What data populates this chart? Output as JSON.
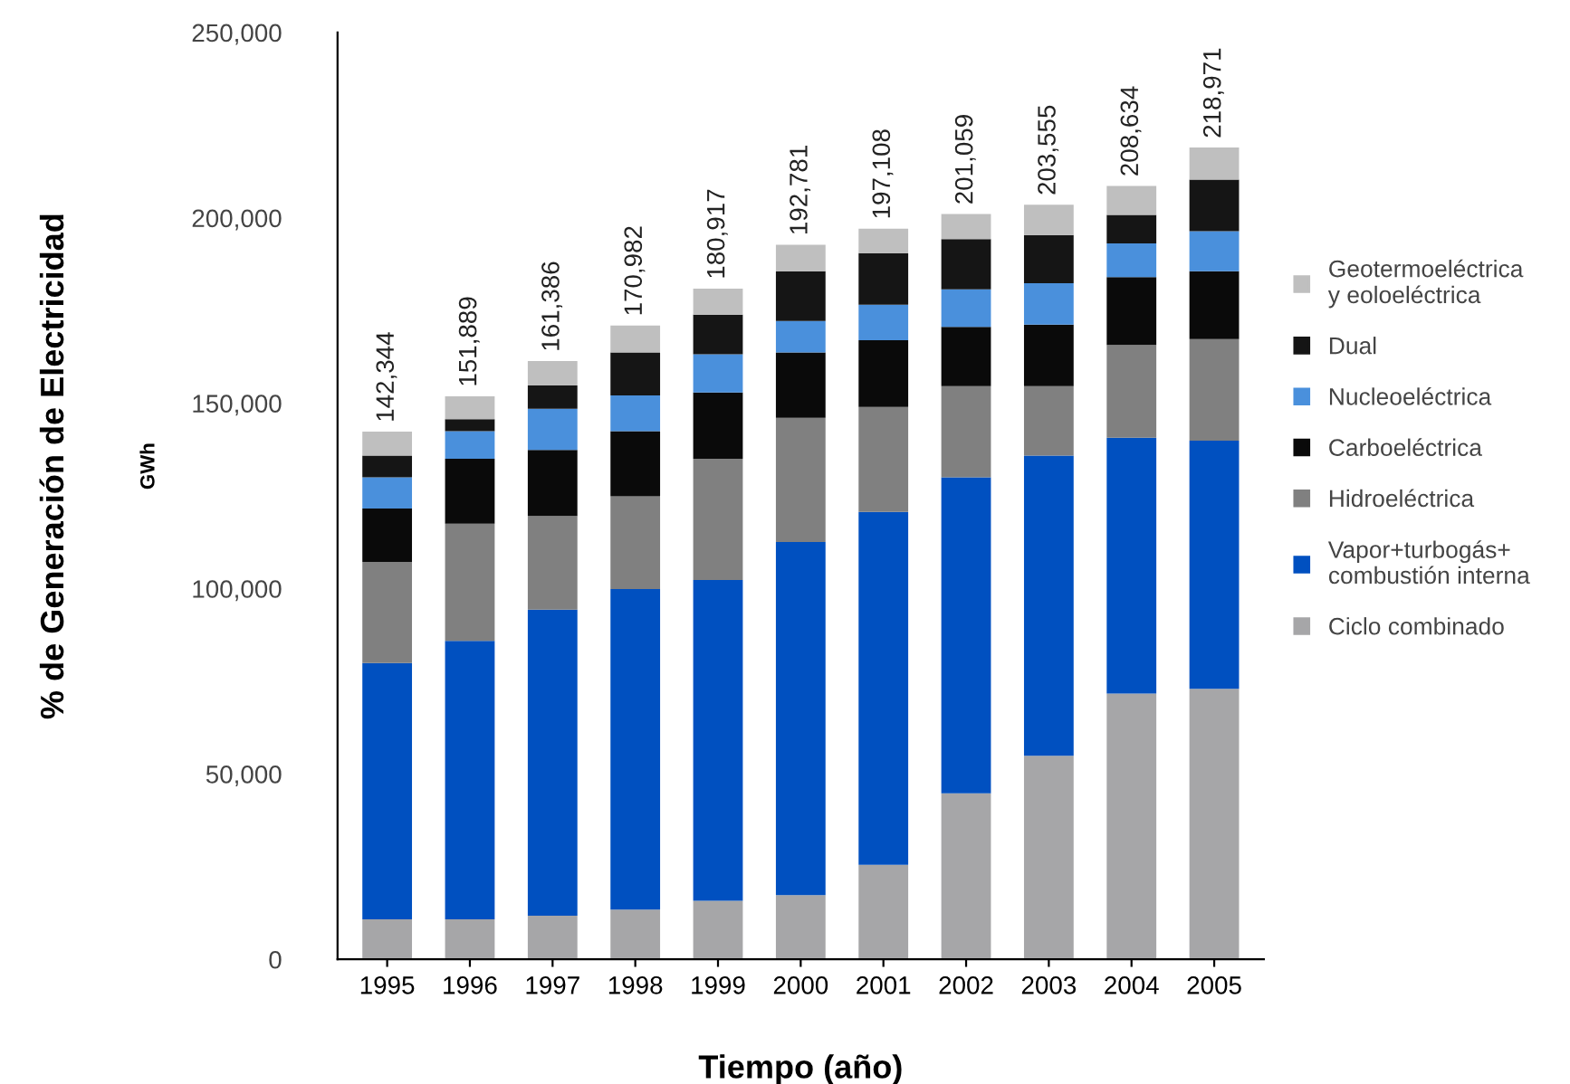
{
  "chart_data": {
    "type": "bar",
    "stacked": true,
    "xlabel": "Tiempo (año)",
    "ylabel": "% de Generación de Electricidad",
    "annotations": [
      "GWh"
    ],
    "categories": [
      "1995",
      "1996",
      "1997",
      "1998",
      "1999",
      "2000",
      "2001",
      "2002",
      "2003",
      "2004",
      "2005"
    ],
    "series": [
      {
        "name": "Ciclo combinado",
        "color": "#a6a6a8",
        "values": [
          10800,
          10800,
          11800,
          13400,
          15800,
          17300,
          25500,
          44800,
          54900,
          71700,
          73000
        ]
      },
      {
        "name": "Vapor+turbogás+\ncombustión interna",
        "color": "#0050c0",
        "values": [
          69100,
          75100,
          82500,
          86500,
          86500,
          95300,
          95200,
          85200,
          81000,
          69000,
          66900
        ]
      },
      {
        "name": "Hidroeléctrica",
        "color": "#808080",
        "values": [
          27300,
          31600,
          25300,
          25000,
          32700,
          33500,
          28300,
          24600,
          18700,
          25000,
          27400
        ]
      },
      {
        "name": "Carboeléctrica",
        "color": "#0a0a0a",
        "values": [
          14400,
          17500,
          17800,
          17600,
          17900,
          17600,
          18000,
          16000,
          16600,
          18300,
          18300
        ]
      },
      {
        "name": "Nucleoeléctrica",
        "color": "#4a90dc",
        "values": [
          8400,
          7500,
          11100,
          9600,
          10300,
          8500,
          9600,
          10100,
          11200,
          9100,
          10800
        ]
      },
      {
        "name": "Dual",
        "color": "#151515",
        "values": [
          5900,
          3200,
          6300,
          11600,
          10700,
          13400,
          13900,
          13600,
          13000,
          7700,
          13900
        ]
      },
      {
        "name": "Geotermoeléctrica\ny eoloeléctrica",
        "color": "#bfbfbf",
        "values": [
          6444,
          6189,
          6586,
          7282,
          7017,
          7181,
          6608,
          6759,
          8155,
          7834,
          8671
        ]
      }
    ],
    "totals": [
      "142,344",
      "151,889",
      "161,386",
      "170,982",
      "180,917",
      "192,781",
      "197,108",
      "201,059",
      "203,555",
      "208,634",
      "218,971"
    ],
    "ylim": [
      0,
      250000
    ],
    "yticks": [
      0,
      {
        "value": 50000,
        "label": "50,000"
      },
      {
        "value": 100000,
        "label": "100,000"
      },
      {
        "value": 150000,
        "label": "150,000"
      },
      {
        "value": 200000,
        "label": "200,000"
      },
      {
        "value": 250000,
        "label": "250,000"
      }
    ],
    "legend": "right",
    "grid": false
  }
}
